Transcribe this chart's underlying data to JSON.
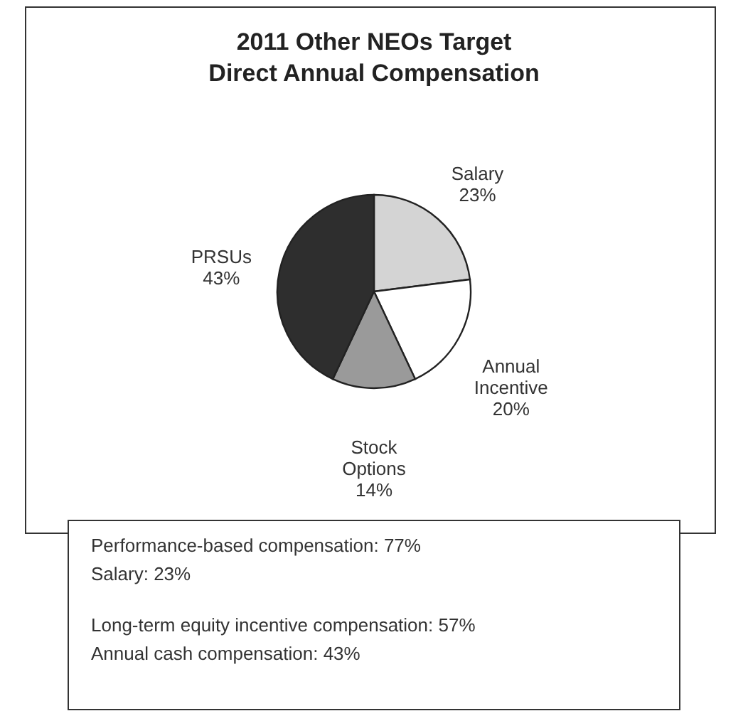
{
  "chart_data": {
    "type": "pie",
    "title": "2011 Other NEOs Target Direct Annual Compensation",
    "categories": [
      "Salary",
      "Annual Incentive",
      "Stock Options",
      "PRSUs"
    ],
    "values": [
      23,
      20,
      14,
      43
    ],
    "colors": [
      "#d4d4d4",
      "#ffffff",
      "#9a9a9a",
      "#2e2e2e"
    ],
    "value_labels": [
      "23%",
      "20%",
      "14%",
      "43%"
    ],
    "annotations": [
      "Performance-based compensation:  77%",
      "Salary:  23%",
      "Long-term equity incentive compensation:  57%",
      "Annual cash compensation:  43%"
    ]
  }
}
